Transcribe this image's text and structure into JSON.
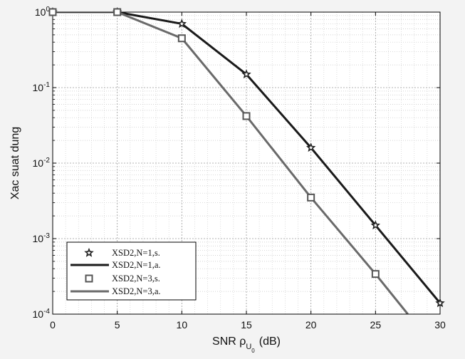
{
  "chart_data": {
    "type": "line",
    "title": "",
    "xlabel": "SNR ρ",
    "xlabel_sub": "U",
    "xlabel_subsub": "0",
    "xlabel_unit": "(dB)",
    "ylabel": "Xac suat dung",
    "xlim": [
      0,
      30
    ],
    "ylim": [
      0.0001,
      1
    ],
    "yscale": "log",
    "x_ticks": [
      0,
      5,
      10,
      15,
      20,
      25,
      30
    ],
    "y_ticks": [
      {
        "value": 1,
        "base": "10",
        "exp": "0"
      },
      {
        "value": 0.1,
        "base": "10",
        "exp": "-1"
      },
      {
        "value": 0.01,
        "base": "10",
        "exp": "-2"
      },
      {
        "value": 0.001,
        "base": "10",
        "exp": "-3"
      },
      {
        "value": 0.0001,
        "base": "10",
        "exp": "-4"
      }
    ],
    "grid": true,
    "legend_position": "bottom-left",
    "series": [
      {
        "name": "XSD2,N=1,s.",
        "kind": "markers",
        "marker": "star",
        "color": "#222222",
        "x": [
          0,
          5,
          10,
          15,
          20,
          25,
          30
        ],
        "y": [
          1,
          1,
          0.7,
          0.15,
          0.016,
          0.0015,
          0.00014
        ]
      },
      {
        "name": "XSD2,N=1,a.",
        "kind": "line",
        "color": "#1a1a1a",
        "x": [
          0,
          5,
          10,
          15,
          20,
          25,
          30
        ],
        "y": [
          1,
          1,
          0.7,
          0.15,
          0.016,
          0.0015,
          0.00014
        ]
      },
      {
        "name": "XSD2,N=3,s.",
        "kind": "markers",
        "marker": "square",
        "color": "#555555",
        "x": [
          0,
          5,
          10,
          15,
          20,
          25
        ],
        "y": [
          1,
          1,
          0.45,
          0.042,
          0.0035,
          0.00034
        ]
      },
      {
        "name": "XSD2,N=3,a.",
        "kind": "line",
        "color": "#6a6a6a",
        "x": [
          0,
          5,
          10,
          15,
          20,
          25,
          27.5
        ],
        "y": [
          1,
          1,
          0.45,
          0.042,
          0.0035,
          0.00034,
          0.0001
        ]
      }
    ]
  }
}
